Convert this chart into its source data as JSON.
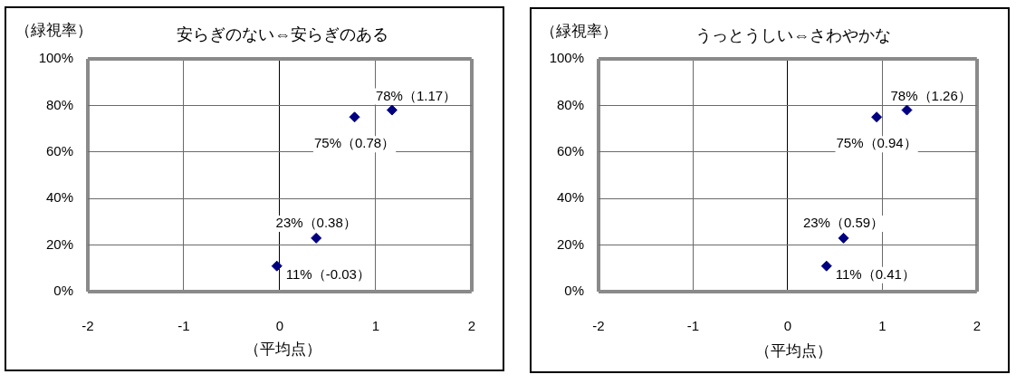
{
  "chart_data": [
    {
      "type": "scatter",
      "title": "安らぎのない⇔安らぎのある",
      "ylabel": "（緑視率）",
      "xlabel": "（平均点）",
      "x": [
        1.17,
        0.78,
        0.38,
        -0.03
      ],
      "values": [
        78,
        75,
        23,
        11
      ],
      "value_labels": [
        "78%（1.17）",
        "75%（0.78）",
        "23%（0.38）",
        "11%（-0.03）"
      ],
      "color": "#000080",
      "marker": "diamond",
      "xlim": [
        -2,
        2
      ],
      "xticks": [
        -2,
        -1,
        0,
        1,
        2
      ],
      "ylim": [
        0,
        100
      ],
      "yticks": [
        {
          "value": 0,
          "label": "0%"
        },
        {
          "value": 20,
          "label": "20%"
        },
        {
          "value": 40,
          "label": "40%"
        },
        {
          "value": 60,
          "label": "60%"
        },
        {
          "value": 80,
          "label": "80%"
        },
        {
          "value": 100,
          "label": "100%"
        }
      ],
      "grid": true,
      "legend": false
    },
    {
      "type": "scatter",
      "title": "うっとうしい⇔さわやかな",
      "ylabel": "（緑視率）",
      "xlabel": "（平均点）",
      "x": [
        1.26,
        0.94,
        0.59,
        0.41
      ],
      "values": [
        78,
        75,
        23,
        11
      ],
      "value_labels": [
        "78%（1.26）",
        "75%（0.94）",
        "23%（0.59）",
        "11%（0.41）"
      ],
      "color": "#000080",
      "marker": "diamond",
      "xlim": [
        -2,
        2
      ],
      "xticks": [
        -2,
        -1,
        0,
        1,
        2
      ],
      "ylim": [
        0,
        100
      ],
      "yticks": [
        {
          "value": 0,
          "label": "0%"
        },
        {
          "value": 20,
          "label": "20%"
        },
        {
          "value": 40,
          "label": "40%"
        },
        {
          "value": 60,
          "label": "60%"
        },
        {
          "value": 80,
          "label": "80%"
        },
        {
          "value": 100,
          "label": "100%"
        }
      ],
      "grid": true,
      "legend": false
    }
  ]
}
